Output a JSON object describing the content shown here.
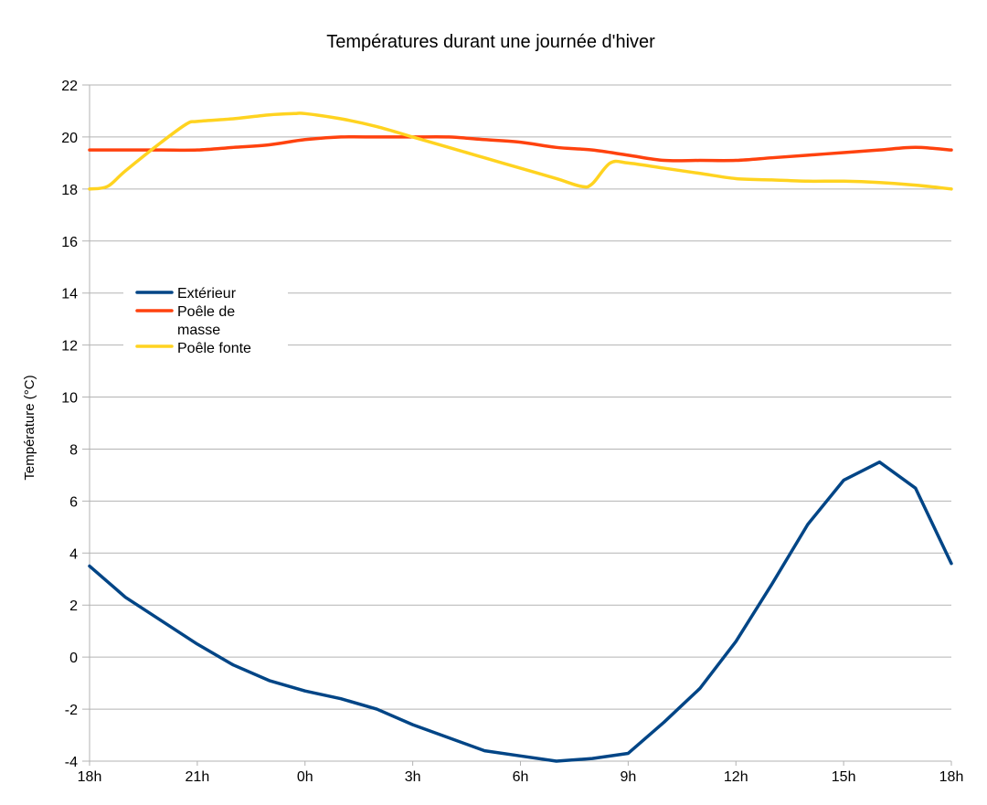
{
  "chart_data": {
    "type": "line",
    "title": "Températures durant une journée d'hiver",
    "xlabel": "",
    "ylabel": "Température (°C)",
    "ylim": [
      -4,
      22
    ],
    "yticks": [
      -4,
      -2,
      0,
      2,
      4,
      6,
      8,
      10,
      12,
      14,
      16,
      18,
      20,
      22
    ],
    "xlim": [
      0,
      24
    ],
    "xticks": [
      {
        "x": 0,
        "label": "18h"
      },
      {
        "x": 3,
        "label": "21h"
      },
      {
        "x": 6,
        "label": "0h"
      },
      {
        "x": 9,
        "label": "3h"
      },
      {
        "x": 12,
        "label": "6h"
      },
      {
        "x": 15,
        "label": "9h"
      },
      {
        "x": 18,
        "label": "12h"
      },
      {
        "x": 21,
        "label": "15h"
      },
      {
        "x": 24,
        "label": "18h"
      }
    ],
    "grid": true,
    "legend_position": "left",
    "series": [
      {
        "name": "Extérieur",
        "color": "#004586",
        "x": [
          0,
          1,
          2,
          3,
          4,
          5,
          6,
          7,
          8,
          9,
          10,
          11,
          12,
          13,
          14,
          15,
          16,
          17,
          18,
          19,
          20,
          21,
          22,
          23,
          24
        ],
        "values": [
          3.5,
          2.3,
          1.4,
          0.5,
          -0.3,
          -0.9,
          -1.3,
          -1.6,
          -2.0,
          -2.6,
          -3.1,
          -3.6,
          -3.8,
          -4.0,
          -3.9,
          -3.7,
          -2.5,
          -1.2,
          0.6,
          2.8,
          5.1,
          6.8,
          7.5,
          6.5,
          3.6
        ]
      },
      {
        "name": "Poêle de masse",
        "color": "#ff420e",
        "x": [
          0,
          1,
          2,
          3,
          4,
          5,
          6,
          7,
          8,
          9,
          10,
          11,
          12,
          13,
          14,
          15,
          16,
          17,
          18,
          19,
          20,
          21,
          22,
          23,
          24
        ],
        "values": [
          19.5,
          19.5,
          19.5,
          19.5,
          19.6,
          19.7,
          19.9,
          20.0,
          20.0,
          20.0,
          20.0,
          19.9,
          19.8,
          19.6,
          19.5,
          19.3,
          19.1,
          19.1,
          19.1,
          19.2,
          19.3,
          19.4,
          19.5,
          19.6,
          19.5
        ]
      },
      {
        "name": "Poêle fonte",
        "color": "#ffd320",
        "x": [
          0,
          0.5,
          1,
          2,
          2.7,
          3,
          4,
          5,
          5.7,
          6,
          7,
          8,
          9,
          10,
          11,
          12,
          13,
          13.7,
          14,
          14.5,
          15,
          16,
          17,
          18,
          19,
          20,
          21,
          22,
          23,
          24
        ],
        "values": [
          18.0,
          18.1,
          18.7,
          19.8,
          20.5,
          20.6,
          20.7,
          20.85,
          20.9,
          20.9,
          20.7,
          20.4,
          20.0,
          19.6,
          19.2,
          18.8,
          18.4,
          18.1,
          18.2,
          19.0,
          19.0,
          18.8,
          18.6,
          18.4,
          18.35,
          18.3,
          18.3,
          18.25,
          18.15,
          18.0
        ]
      }
    ]
  }
}
